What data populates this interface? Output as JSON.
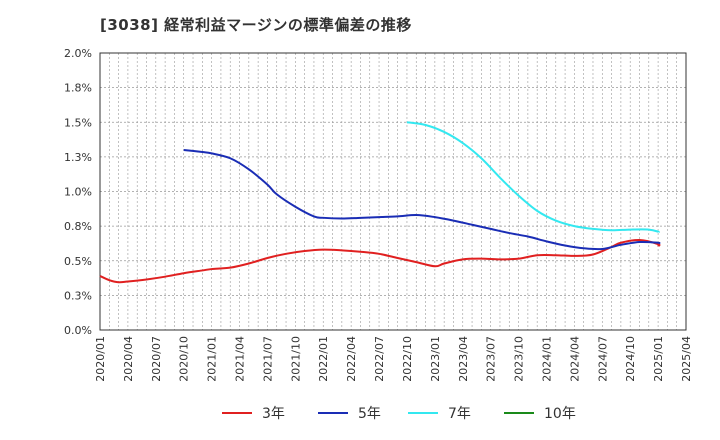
{
  "chart_data": {
    "type": "line",
    "title": "[3038]  経常利益マージンの標準偏差の推移",
    "ylim": [
      0,
      2.0
    ],
    "y_ticks": [
      "0.0%",
      "0.3%",
      "0.5%",
      "0.8%",
      "1.0%",
      "1.3%",
      "1.5%",
      "1.8%",
      "2.0%"
    ],
    "y_tick_values": [
      0,
      0.25,
      0.5,
      0.75,
      1.0,
      1.25,
      1.5,
      1.75,
      2.0
    ],
    "x_ticks": [
      "2020/01",
      "2020/04",
      "2020/07",
      "2020/10",
      "2021/01",
      "2021/04",
      "2021/07",
      "2021/10",
      "2022/01",
      "2022/04",
      "2022/07",
      "2022/10",
      "2023/01",
      "2023/04",
      "2023/07",
      "2023/10",
      "2024/01",
      "2024/04",
      "2024/07",
      "2024/10",
      "2025/01",
      "2025/04"
    ],
    "grid": true,
    "legend_position": "bottom",
    "series": [
      {
        "name": "3年",
        "color": "#e02020",
        "points": [
          [
            "2020/01",
            0.39
          ],
          [
            "2020/02",
            0.36
          ],
          [
            "2020/03",
            0.345
          ],
          [
            "2020/04",
            0.35
          ],
          [
            "2020/06",
            0.365
          ],
          [
            "2020/08",
            0.385
          ],
          [
            "2020/10",
            0.41
          ],
          [
            "2020/12",
            0.43
          ],
          [
            "2021/01",
            0.44
          ],
          [
            "2021/03",
            0.45
          ],
          [
            "2021/05",
            0.48
          ],
          [
            "2021/07",
            0.52
          ],
          [
            "2021/09",
            0.55
          ],
          [
            "2021/11",
            0.57
          ],
          [
            "2022/01",
            0.58
          ],
          [
            "2022/03",
            0.575
          ],
          [
            "2022/05",
            0.565
          ],
          [
            "2022/07",
            0.55
          ],
          [
            "2022/09",
            0.52
          ],
          [
            "2022/11",
            0.49
          ],
          [
            "2023/01",
            0.46
          ],
          [
            "2023/02",
            0.48
          ],
          [
            "2023/04",
            0.51
          ],
          [
            "2023/06",
            0.515
          ],
          [
            "2023/08",
            0.51
          ],
          [
            "2023/10",
            0.515
          ],
          [
            "2023/12",
            0.54
          ],
          [
            "2024/02",
            0.54
          ],
          [
            "2024/04",
            0.535
          ],
          [
            "2024/06",
            0.545
          ],
          [
            "2024/08",
            0.6
          ],
          [
            "2024/09",
            0.63
          ],
          [
            "2024/11",
            0.65
          ],
          [
            "2025/01",
            0.62
          ],
          [
            "2025/01",
            0.605
          ]
        ]
      },
      {
        "name": "5年",
        "color": "#1a2db5",
        "points": [
          [
            "2020/10",
            1.3
          ],
          [
            "2020/12",
            1.285
          ],
          [
            "2021/01",
            1.275
          ],
          [
            "2021/03",
            1.24
          ],
          [
            "2021/05",
            1.16
          ],
          [
            "2021/07",
            1.05
          ],
          [
            "2021/08",
            0.98
          ],
          [
            "2021/10",
            0.89
          ],
          [
            "2021/12",
            0.82
          ],
          [
            "2022/01",
            0.81
          ],
          [
            "2022/03",
            0.805
          ],
          [
            "2022/05",
            0.81
          ],
          [
            "2022/07",
            0.815
          ],
          [
            "2022/09",
            0.82
          ],
          [
            "2022/11",
            0.83
          ],
          [
            "2023/01",
            0.815
          ],
          [
            "2023/03",
            0.79
          ],
          [
            "2023/05",
            0.76
          ],
          [
            "2023/07",
            0.73
          ],
          [
            "2023/09",
            0.7
          ],
          [
            "2023/11",
            0.675
          ],
          [
            "2024/01",
            0.64
          ],
          [
            "2024/03",
            0.61
          ],
          [
            "2024/05",
            0.59
          ],
          [
            "2024/07",
            0.585
          ],
          [
            "2024/09",
            0.615
          ],
          [
            "2024/11",
            0.635
          ],
          [
            "2025/01",
            0.63
          ],
          [
            "2025/01",
            0.625
          ]
        ]
      },
      {
        "name": "7年",
        "color": "#33e8f0",
        "points": [
          [
            "2022/10",
            1.5
          ],
          [
            "2022/12",
            1.48
          ],
          [
            "2023/02",
            1.43
          ],
          [
            "2023/04",
            1.35
          ],
          [
            "2023/06",
            1.24
          ],
          [
            "2023/08",
            1.1
          ],
          [
            "2023/10",
            0.97
          ],
          [
            "2023/12",
            0.86
          ],
          [
            "2024/02",
            0.79
          ],
          [
            "2024/04",
            0.75
          ],
          [
            "2024/06",
            0.73
          ],
          [
            "2024/08",
            0.72
          ],
          [
            "2024/10",
            0.725
          ],
          [
            "2024/12",
            0.725
          ],
          [
            "2025/01",
            0.71
          ],
          [
            "2025/01",
            0.705
          ]
        ]
      },
      {
        "name": "10年",
        "color": "#1a8a1a",
        "points": []
      }
    ]
  }
}
